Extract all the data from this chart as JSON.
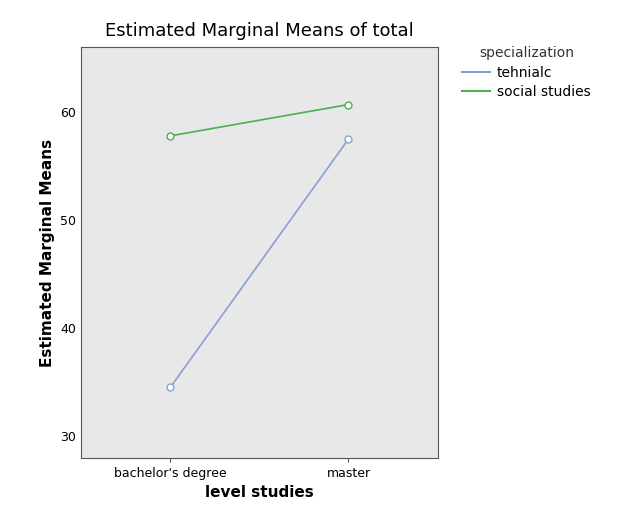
{
  "title": "Estimated Marginal Means of total",
  "xlabel": "level studies",
  "ylabel": "Estimated Marginal Means",
  "x_categories": [
    "bachelor's degree",
    "master"
  ],
  "x_positions": [
    1,
    2
  ],
  "tehnialc": [
    34.5,
    57.5
  ],
  "social_studies": [
    57.8,
    60.7
  ],
  "tehnialc_color": "#8a9fd4",
  "social_studies_color": "#4caf50",
  "ylim": [
    28,
    66
  ],
  "yticks": [
    30,
    40,
    50,
    60
  ],
  "legend_title": "specialization",
  "legend_labels": [
    "tehnialc",
    "social studies"
  ],
  "plot_bg_color": "#e8e8e8",
  "fig_bg_color": "#ffffff",
  "title_fontsize": 13,
  "axis_label_fontsize": 11,
  "tick_fontsize": 9,
  "legend_fontsize": 10,
  "legend_title_fontsize": 10
}
